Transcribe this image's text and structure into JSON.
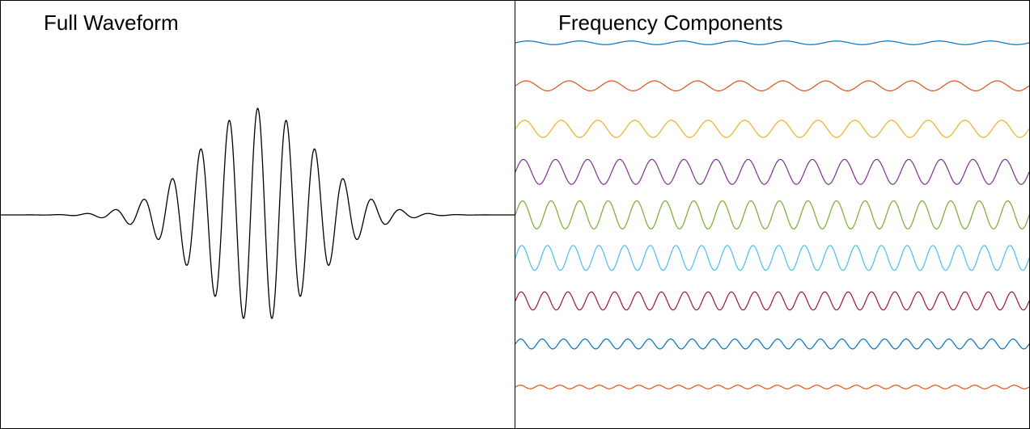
{
  "chart_data": [
    {
      "type": "line",
      "title": "Full Waveform",
      "xlabel": "",
      "ylabel": "",
      "grid": false,
      "axes_visible": false,
      "series": [
        {
          "color": "#000000",
          "envelope": "gaussian",
          "center": 0.5,
          "width": 0.16,
          "amplitude": 1.0,
          "frequency_cycles": 18
        }
      ]
    },
    {
      "type": "line",
      "title": "Frequency Components",
      "xlabel": "",
      "ylabel": "",
      "grid": false,
      "axes_visible": false,
      "series": [
        {
          "color": "#0072BD",
          "frequency_cycles": 10,
          "amplitude": 0.08
        },
        {
          "color": "#D95319",
          "frequency_cycles": 12,
          "amplitude": 0.22
        },
        {
          "color": "#EDB120",
          "frequency_cycles": 14,
          "amplitude": 0.38
        },
        {
          "color": "#7E2F8E",
          "frequency_cycles": 16,
          "amplitude": 0.55
        },
        {
          "color": "#77AC30",
          "frequency_cycles": 18,
          "amplitude": 0.62
        },
        {
          "color": "#4DBEEE",
          "frequency_cycles": 20,
          "amplitude": 0.55
        },
        {
          "color": "#A2142F",
          "frequency_cycles": 22,
          "amplitude": 0.4
        },
        {
          "color": "#0072BD",
          "frequency_cycles": 24,
          "amplitude": 0.22
        },
        {
          "color": "#D95319",
          "frequency_cycles": 26,
          "amplitude": 0.08
        }
      ]
    }
  ]
}
